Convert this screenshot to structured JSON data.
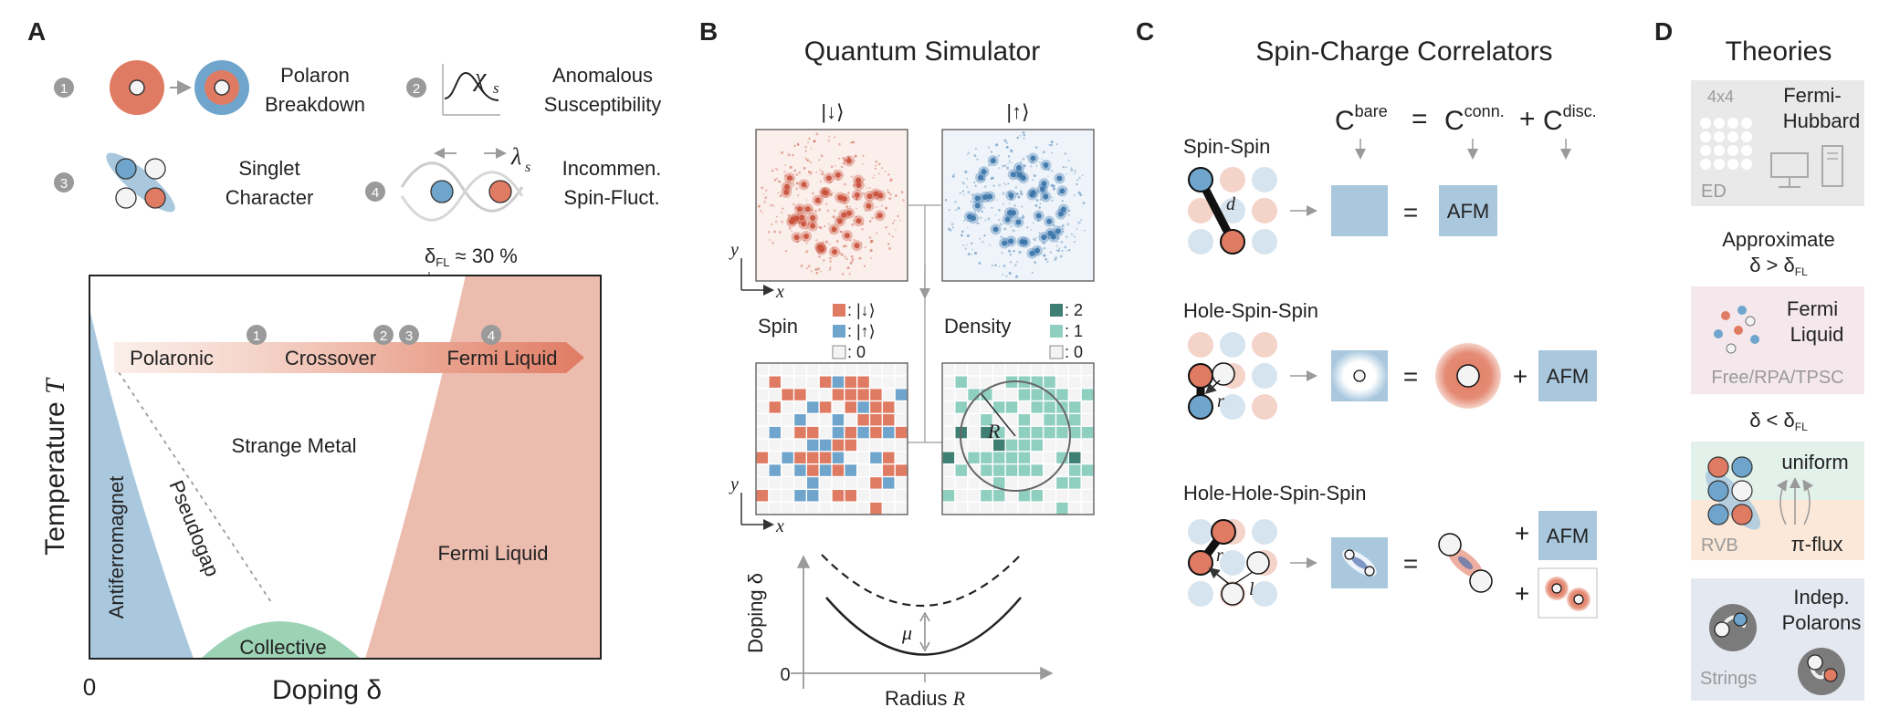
{
  "colors": {
    "red": "#e07b63",
    "blue": "#6fa5cc",
    "lightblue": "#a9c8de",
    "salmon": "#ecbcae",
    "teal_dark": "#3f7e72",
    "teal": "#8fcfc0",
    "teal_light": "#c9e9e1",
    "collective": "#9dd3b5",
    "badge": "#9a9a9a"
  },
  "panelA": {
    "letter": "A",
    "items": [
      {
        "num": "1",
        "line1": "Polaron",
        "line2": "Breakdown"
      },
      {
        "num": "2",
        "symbol": "χ",
        "sub": "s",
        "line1": "Anomalous",
        "line2": "Susceptibility"
      },
      {
        "num": "3",
        "line1": "Singlet",
        "line2": "Character"
      },
      {
        "num": "4",
        "symbol": "λ",
        "sub": "s",
        "line1": "Incommen.",
        "line2": "Spin-Fluct."
      }
    ],
    "delta_fl": {
      "pre": "δ",
      "sub": "FL",
      "post": " ≈ 30 %"
    },
    "arrow_labels": [
      "Polaronic",
      "Crossover",
      "Fermi Liquid"
    ],
    "arrow_badges": [
      "1",
      "2",
      "3",
      "4"
    ],
    "regions": {
      "strange_metal": "Strange Metal",
      "pseudogap": "Pseudogap",
      "antiferromagnet": "Antiferromagnet",
      "fermi_liquid": "Fermi Liquid",
      "collective": "Collective"
    },
    "ylabel_pre": "Temperature ",
    "ylabel_var": "T",
    "xlabel": "Doping δ",
    "origin": "0"
  },
  "panelB": {
    "letter": "B",
    "title": "Quantum Simulator",
    "ket_down": "|↓⟩",
    "ket_up": "|↑⟩",
    "axis_x": "x",
    "axis_y": "y",
    "spin_label": "Spin",
    "spin_legend": [
      ": |↓⟩",
      ": |↑⟩",
      ": 0"
    ],
    "density_label": "Density",
    "density_legend": [
      ": 2",
      ": 1",
      ": 0"
    ],
    "radius_symbol": "R",
    "doping_axis": "Doping δ",
    "doping_zero": "0",
    "mu_symbol": "μ",
    "radius_axis_pre": "Radius ",
    "radius_axis_var": "R"
  },
  "panelC": {
    "letter": "C",
    "title": "Spin-Charge Correlators",
    "header": {
      "c1": "C",
      "c1_sup": "bare",
      "eq": "=",
      "c2": "C",
      "c2_sup": "conn.",
      "plus": "+",
      "c3": "C",
      "c3_sup": "disc."
    },
    "rows": [
      {
        "label": "Spin-Spin",
        "var": "d",
        "afm": "AFM"
      },
      {
        "label": "Hole-Spin-Spin",
        "var": "r",
        "afm": "AFM"
      },
      {
        "label": "Hole-Hole-Spin-Spin",
        "var1": "r",
        "var2": "l",
        "afm": "AFM"
      }
    ],
    "eq": "=",
    "plus": "+"
  },
  "panelD": {
    "letter": "D",
    "title": "Theories",
    "box1": {
      "size": "4x4",
      "name_line1": "Fermi-",
      "name_line2": "Hubbard",
      "method": "ED"
    },
    "cond1": {
      "line1": "Approximate",
      "pre": "δ > δ",
      "sub": "FL"
    },
    "box2": {
      "line1": "Fermi",
      "line2": "Liquid",
      "method": "Free/RPA/TPSC"
    },
    "cond2": {
      "pre": "δ < δ",
      "sub": "FL"
    },
    "box3": {
      "top": "uniform",
      "bottom": "π-flux",
      "method": "RVB"
    },
    "box4": {
      "line1": "Indep.",
      "line2": "Polarons",
      "method": "Strings"
    }
  }
}
